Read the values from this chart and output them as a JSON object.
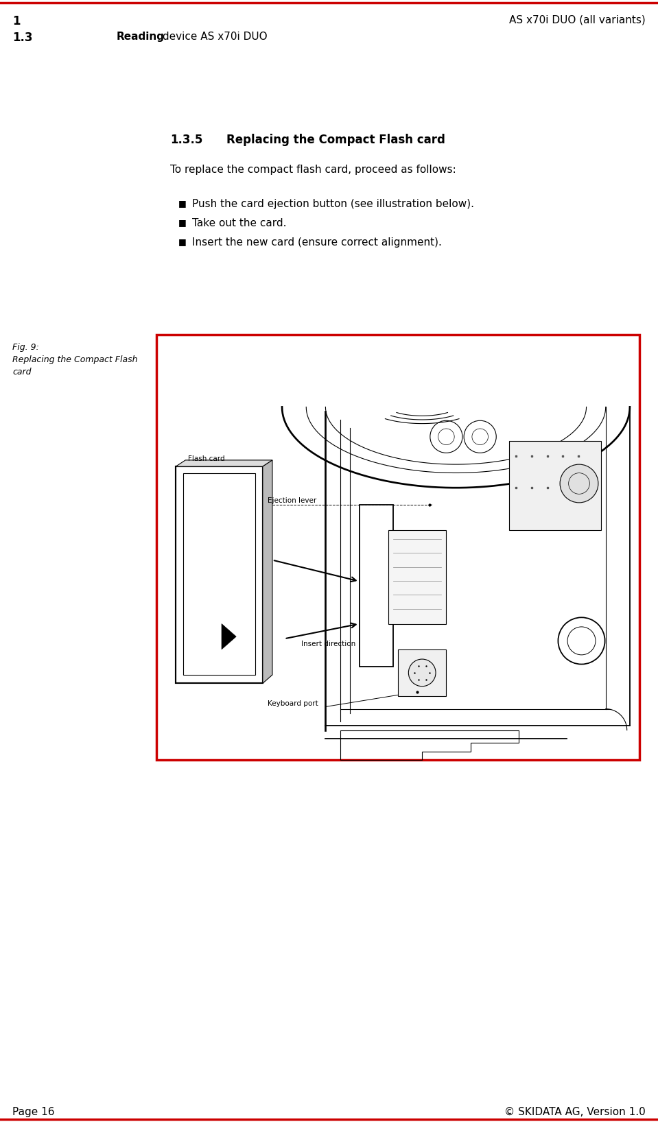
{
  "bg_color": "#ffffff",
  "red_line_color": "#cc0000",
  "header_left_number": "1",
  "header_right_text": "AS x70i DUO (all variants)",
  "subheader_left": "1.3",
  "subheader_mid_bold": "Reading",
  "subheader_mid_rest": " device AS x70i DUO",
  "section_title_num": "1.3.5",
  "section_title_text": "Replacing the Compact Flash card",
  "intro_text": "To replace the compact flash card, proceed as follows:",
  "bullets": [
    "Push the card ejection button (see illustration below).",
    "Take out the card.",
    "Insert the new card (ensure correct alignment)."
  ],
  "fig_label_line1": "Fig. 9:",
  "fig_label_line2": "Replacing the Compact Flash",
  "fig_label_line3": "card",
  "footer_left": "Page 16",
  "footer_right": "© SKIDATA AG, Version 1.0",
  "label_ejection": "Ejection lever",
  "label_flash": "Flash card",
  "label_insert": "Insert direction",
  "label_keyboard": "Keyboard port",
  "header_font_size": 11,
  "section_title_font_size": 12,
  "body_font_size": 11
}
